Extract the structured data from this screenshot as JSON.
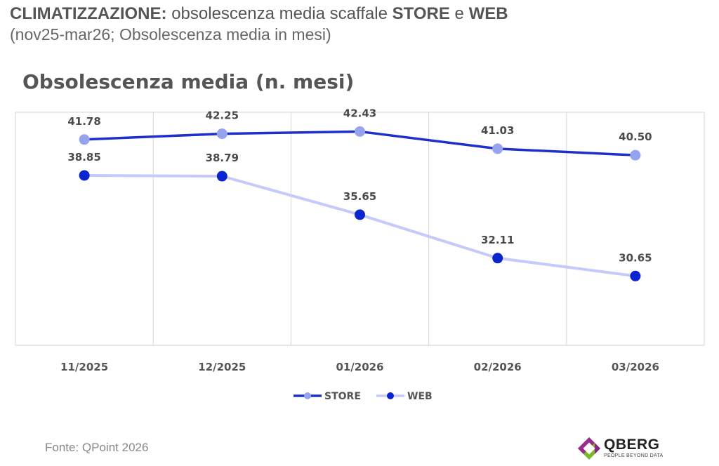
{
  "header": {
    "title_strong": "CLIMATIZZAZIONE:",
    "title_rest": "obsolescenza media scaffale",
    "title_store": "STORE",
    "title_and": "e",
    "title_web": "WEB",
    "subtitle": "(nov25-mar26; Obsolescenza media in mesi)"
  },
  "chart_data": {
    "type": "line",
    "title": "Obsolescenza media (n. mesi)",
    "categories": [
      "11/2025",
      "12/2025",
      "01/2026",
      "02/2026",
      "03/2026"
    ],
    "series": [
      {
        "name": "STORE",
        "values": [
          41.78,
          42.25,
          42.43,
          41.03,
          40.5
        ],
        "labels": [
          "41.78",
          "42.25",
          "42.43",
          "41.03",
          "40.50"
        ],
        "line_color": "#1f2fcc",
        "marker_color": "#96a4f0"
      },
      {
        "name": "WEB",
        "values": [
          38.85,
          38.79,
          35.65,
          32.11,
          30.65
        ],
        "labels": [
          "38.85",
          "38.79",
          "35.65",
          "32.11",
          "30.65"
        ],
        "line_color": "#c4cbfb",
        "marker_color": "#0a24cf"
      }
    ],
    "ylim": [
      25,
      44
    ],
    "grid": "vertical",
    "legend": "bottom"
  },
  "footer": {
    "source": "Fonte: QPoint 2026",
    "logo_name": "QBERG",
    "logo_tagline": "PEOPLE BEYOND DATA",
    "logo_icon": "qberg-diamond-icon"
  }
}
